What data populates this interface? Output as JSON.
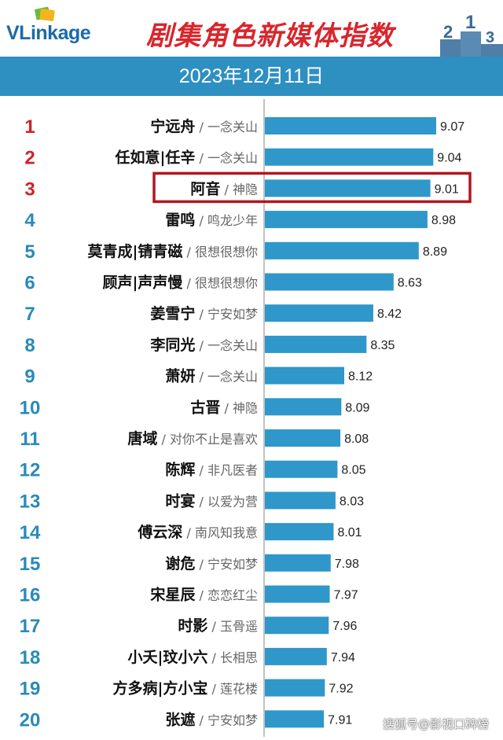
{
  "header": {
    "logo_text": "VLinkage",
    "title": "剧集角色新媒体指数",
    "podium_digits": [
      "2",
      "1",
      "3"
    ]
  },
  "date_label": "2023年12月11日",
  "watermark": "搜狐号@影视口碑榜",
  "colors": {
    "bar": "#2f97c9",
    "rank_top3": "#d0222b",
    "rank_rest": "#2a8ab9",
    "highlight_border": "#b4161e",
    "date_bar": "#2e8fc1",
    "title": "#d8262c"
  },
  "chart_data": {
    "type": "bar",
    "orientation": "horizontal",
    "highlighted_rank": 3,
    "xlim": [
      0,
      9.07
    ],
    "rows": [
      {
        "rank": "1",
        "name": "宁远舟",
        "show": "一念关山",
        "value": 9.07,
        "label": "9.07"
      },
      {
        "rank": "2",
        "name": "任如意|任辛",
        "show": "一念关山",
        "value": 9.04,
        "label": "9.04"
      },
      {
        "rank": "3",
        "name": "阿音",
        "show": "神隐",
        "value": 9.01,
        "label": "9.01"
      },
      {
        "rank": "4",
        "name": "雷鸣",
        "show": "鸣龙少年",
        "value": 8.98,
        "label": "8.98"
      },
      {
        "rank": "5",
        "name": "莫青成|锖青磁",
        "show": "很想很想你",
        "value": 8.89,
        "label": "8.89"
      },
      {
        "rank": "6",
        "name": "顾声|声声慢",
        "show": "很想很想你",
        "value": 8.63,
        "label": "8.63"
      },
      {
        "rank": "7",
        "name": "姜雪宁",
        "show": "宁安如梦",
        "value": 8.42,
        "label": "8.42"
      },
      {
        "rank": "8",
        "name": "李同光",
        "show": "一念关山",
        "value": 8.35,
        "label": "8.35"
      },
      {
        "rank": "9",
        "name": "萧妍",
        "show": "一念关山",
        "value": 8.12,
        "label": "8.12"
      },
      {
        "rank": "10",
        "name": "古晋",
        "show": "神隐",
        "value": 8.09,
        "label": "8.09"
      },
      {
        "rank": "11",
        "name": "唐域",
        "show": "对你不止是喜欢",
        "value": 8.08,
        "label": "8.08"
      },
      {
        "rank": "12",
        "name": "陈辉",
        "show": "非凡医者",
        "value": 8.05,
        "label": "8.05"
      },
      {
        "rank": "13",
        "name": "时宴",
        "show": "以爱为营",
        "value": 8.03,
        "label": "8.03"
      },
      {
        "rank": "14",
        "name": "傅云深",
        "show": "南风知我意",
        "value": 8.01,
        "label": "8.01"
      },
      {
        "rank": "15",
        "name": "谢危",
        "show": "宁安如梦",
        "value": 7.98,
        "label": "7.98"
      },
      {
        "rank": "16",
        "name": "宋星辰",
        "show": "恋恋红尘",
        "value": 7.97,
        "label": "7.97"
      },
      {
        "rank": "17",
        "name": "时影",
        "show": "玉骨遥",
        "value": 7.96,
        "label": "7.96"
      },
      {
        "rank": "18",
        "name": "小夭|玟小六",
        "show": "长相思",
        "value": 7.94,
        "label": "7.94"
      },
      {
        "rank": "19",
        "name": "方多病|方小宝",
        "show": "莲花楼",
        "value": 7.92,
        "label": "7.92"
      },
      {
        "rank": "20",
        "name": "张遮",
        "show": "宁安如梦",
        "value": 7.91,
        "label": "7.91"
      }
    ]
  }
}
